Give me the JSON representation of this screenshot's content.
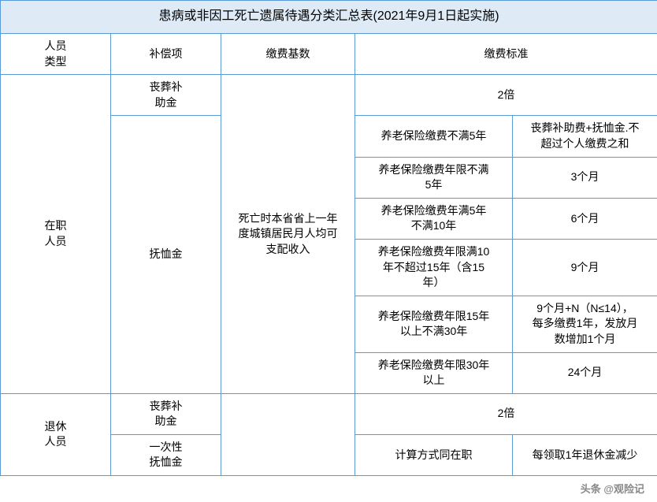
{
  "title": "患病或非因工死亡遗属待遇分类汇总表(2021年9月1日起实施)",
  "headers": {
    "person_type_l1": "人员",
    "person_type_l2": "类型",
    "item": "补偿项",
    "base": "缴费基数",
    "standard": "缴费标准"
  },
  "on_job": {
    "label_l1": "在职",
    "label_l2": "人员",
    "funeral_l1": "丧葬补",
    "funeral_l2": "助金",
    "pension": "抚恤金",
    "base_l1": "死亡时本省省上一年",
    "base_l2": "度城镇居民月人均可",
    "base_l3": "支配收入",
    "funeral_std": "2倍",
    "r1_cond": "养老保险缴费不满5年",
    "r1_val_l1": "丧葬补助费+抚恤金.不",
    "r1_val_l2": "超过个人缴费之和",
    "r2_cond_l1": "养老保险缴费年限不满",
    "r2_cond_l2": "5年",
    "r2_val": "3个月",
    "r3_cond_l1": "养老保险缴费年满5年",
    "r3_cond_l2": "不满10年",
    "r3_val": "6个月",
    "r4_cond_l1": "养老保险缴费年限满10",
    "r4_cond_l2": "年不超过15年（含15",
    "r4_cond_l3": "年）",
    "r4_val": "9个月",
    "r5_cond_l1": "养老保险缴费年限15年",
    "r5_cond_l2": "以上不满30年",
    "r5_val_l1": "9个月+N（N≤14），",
    "r5_val_l2": "每多缴费1年，发放月",
    "r5_val_l3": "数增加1个月",
    "r6_cond_l1": "养老保险缴费年限30年",
    "r6_cond_l2": "以上",
    "r6_val": "24个月"
  },
  "retired": {
    "label_l1": "退休",
    "label_l2": "人员",
    "funeral_l1": "丧葬补",
    "funeral_l2": "助金",
    "funeral_std": "2倍",
    "once_l1": "一次性",
    "once_l2": "抚恤金",
    "calc_same": "计算方式同在职",
    "per_year": "每领取1年退休金减少"
  },
  "watermark": "头条 @观险记"
}
